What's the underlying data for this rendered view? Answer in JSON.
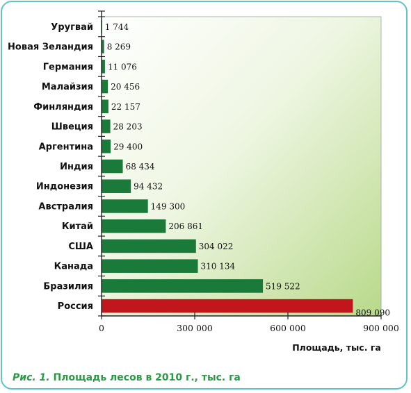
{
  "chart_data": {
    "type": "bar",
    "orientation": "horizontal",
    "categories": [
      "Уругвай",
      "Новая Зеландия",
      "Германия",
      "Малайзия",
      "Финляндия",
      "Швеция",
      "Аргентина",
      "Индия",
      "Индонезия",
      "Австралия",
      "Китай",
      "США",
      "Канада",
      "Бразилия",
      "Россия"
    ],
    "values": [
      1744,
      8269,
      11076,
      20456,
      22157,
      28203,
      29400,
      68434,
      94432,
      149300,
      206861,
      304022,
      310134,
      519522,
      809090
    ],
    "value_labels": [
      "1 744",
      "8 269",
      "11 076",
      "20 456",
      "22 157",
      "28 203",
      "29 400",
      "68 434",
      "94 432",
      "149 300",
      "206 861",
      "304 022",
      "310 134",
      "519 522",
      "809 090"
    ],
    "xlim": [
      0,
      900000
    ],
    "x_ticks": [
      0,
      300000,
      600000,
      900000
    ],
    "x_tick_labels": [
      "0",
      "300 000",
      "600 000",
      "900 000"
    ],
    "xlabel": "Площадь, тыс. га",
    "ylabel": "",
    "grid": false,
    "colors": {
      "bar": "#1a7a3a",
      "highlight_bar": "#c0161c",
      "plot_bg_light": "#ffffff",
      "plot_bg_dark": "#b8d98a",
      "frame": "#5fc3c9",
      "caption": "#2a9a45"
    },
    "highlight_category": "Россия"
  },
  "caption": {
    "number": "Рис. 1.",
    "text": "Площадь лесов в 2010 г., тыс. га"
  }
}
